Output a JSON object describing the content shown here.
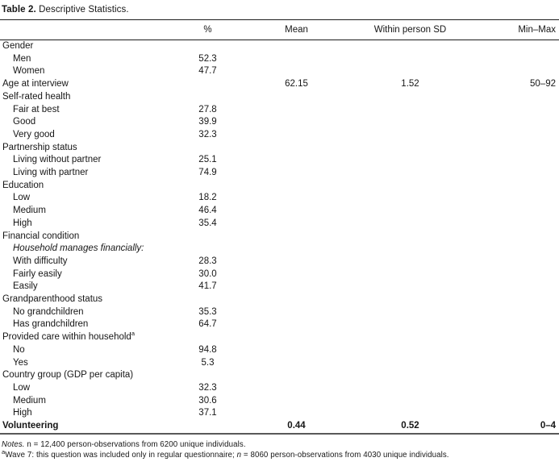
{
  "page": {
    "background": "#ffffff",
    "text_color": "#161616",
    "rule_color": "#1c1c1c",
    "bottom_rule_color": "#595959"
  },
  "table": {
    "title": {
      "label": "Table 2.",
      "text": " Descriptive Statistics."
    },
    "columns": {
      "stub": "",
      "pct": "%",
      "mean": "Mean",
      "sd": "Within person SD",
      "minmax": "Min–Max"
    },
    "rows": [
      {
        "label": "Gender",
        "indent": 0
      },
      {
        "label": "Men",
        "indent": 1,
        "pct": "52.3"
      },
      {
        "label": "Women",
        "indent": 1,
        "pct": "47.7"
      },
      {
        "label": "Age at interview",
        "indent": 0,
        "mean": "62.15",
        "sd": "1.52",
        "minmax": "50–92"
      },
      {
        "label": "Self-rated health",
        "indent": 0
      },
      {
        "label": "Fair at best",
        "indent": 1,
        "pct": "27.8"
      },
      {
        "label": "Good",
        "indent": 1,
        "pct": "39.9"
      },
      {
        "label": "Very good",
        "indent": 1,
        "pct": "32.3"
      },
      {
        "label": "Partnership status",
        "indent": 0
      },
      {
        "label": "Living without partner",
        "indent": 1,
        "pct": "25.1"
      },
      {
        "label": "Living with partner",
        "indent": 1,
        "pct": "74.9"
      },
      {
        "label": "Education",
        "indent": 0
      },
      {
        "label": "Low",
        "indent": 1,
        "pct": "18.2"
      },
      {
        "label": "Medium",
        "indent": 1,
        "pct": "46.4"
      },
      {
        "label": "High",
        "indent": 1,
        "pct": "35.4"
      },
      {
        "label": "Financial condition",
        "indent": 0
      },
      {
        "label": "Household manages financially:",
        "indent": 1,
        "italic": true
      },
      {
        "label": "With difficulty",
        "indent": 1,
        "pct": "28.3"
      },
      {
        "label": "Fairly easily",
        "indent": 1,
        "pct": "30.0"
      },
      {
        "label": "Easily",
        "indent": 1,
        "pct": "41.7"
      },
      {
        "label": "Grandparenthood status",
        "indent": 0
      },
      {
        "label": "No grandchildren",
        "indent": 1,
        "pct": "35.3"
      },
      {
        "label": "Has grandchildren",
        "indent": 1,
        "pct": "64.7"
      },
      {
        "label": "Provided care within household",
        "sup": "a",
        "indent": 0
      },
      {
        "label": "No",
        "indent": 1,
        "pct": "94.8"
      },
      {
        "label": "Yes",
        "indent": 1,
        "pct": "5.3"
      },
      {
        "label": "Country group (GDP per capita)",
        "indent": 0
      },
      {
        "label": "Low",
        "indent": 1,
        "pct": "32.3"
      },
      {
        "label": "Medium",
        "indent": 1,
        "pct": "30.6"
      },
      {
        "label": "High",
        "indent": 1,
        "pct": "37.1"
      },
      {
        "label": "Volunteering",
        "indent": 0,
        "bold": true,
        "mean": "0.44",
        "sd": "0.52",
        "minmax": "0–4"
      }
    ],
    "notes": [
      [
        {
          "text": "Notes.",
          "italic": true
        },
        {
          "text": " n = 12,400 person-observations from 6200 unique individuals."
        }
      ],
      [
        {
          "text": "a",
          "sup": true
        },
        {
          "text": "Wave 7: this question was included only in regular questionnaire; "
        },
        {
          "text": "n",
          "italic": true
        },
        {
          "text": " = 8060 person-observations from 4030 unique individuals."
        }
      ]
    ]
  }
}
